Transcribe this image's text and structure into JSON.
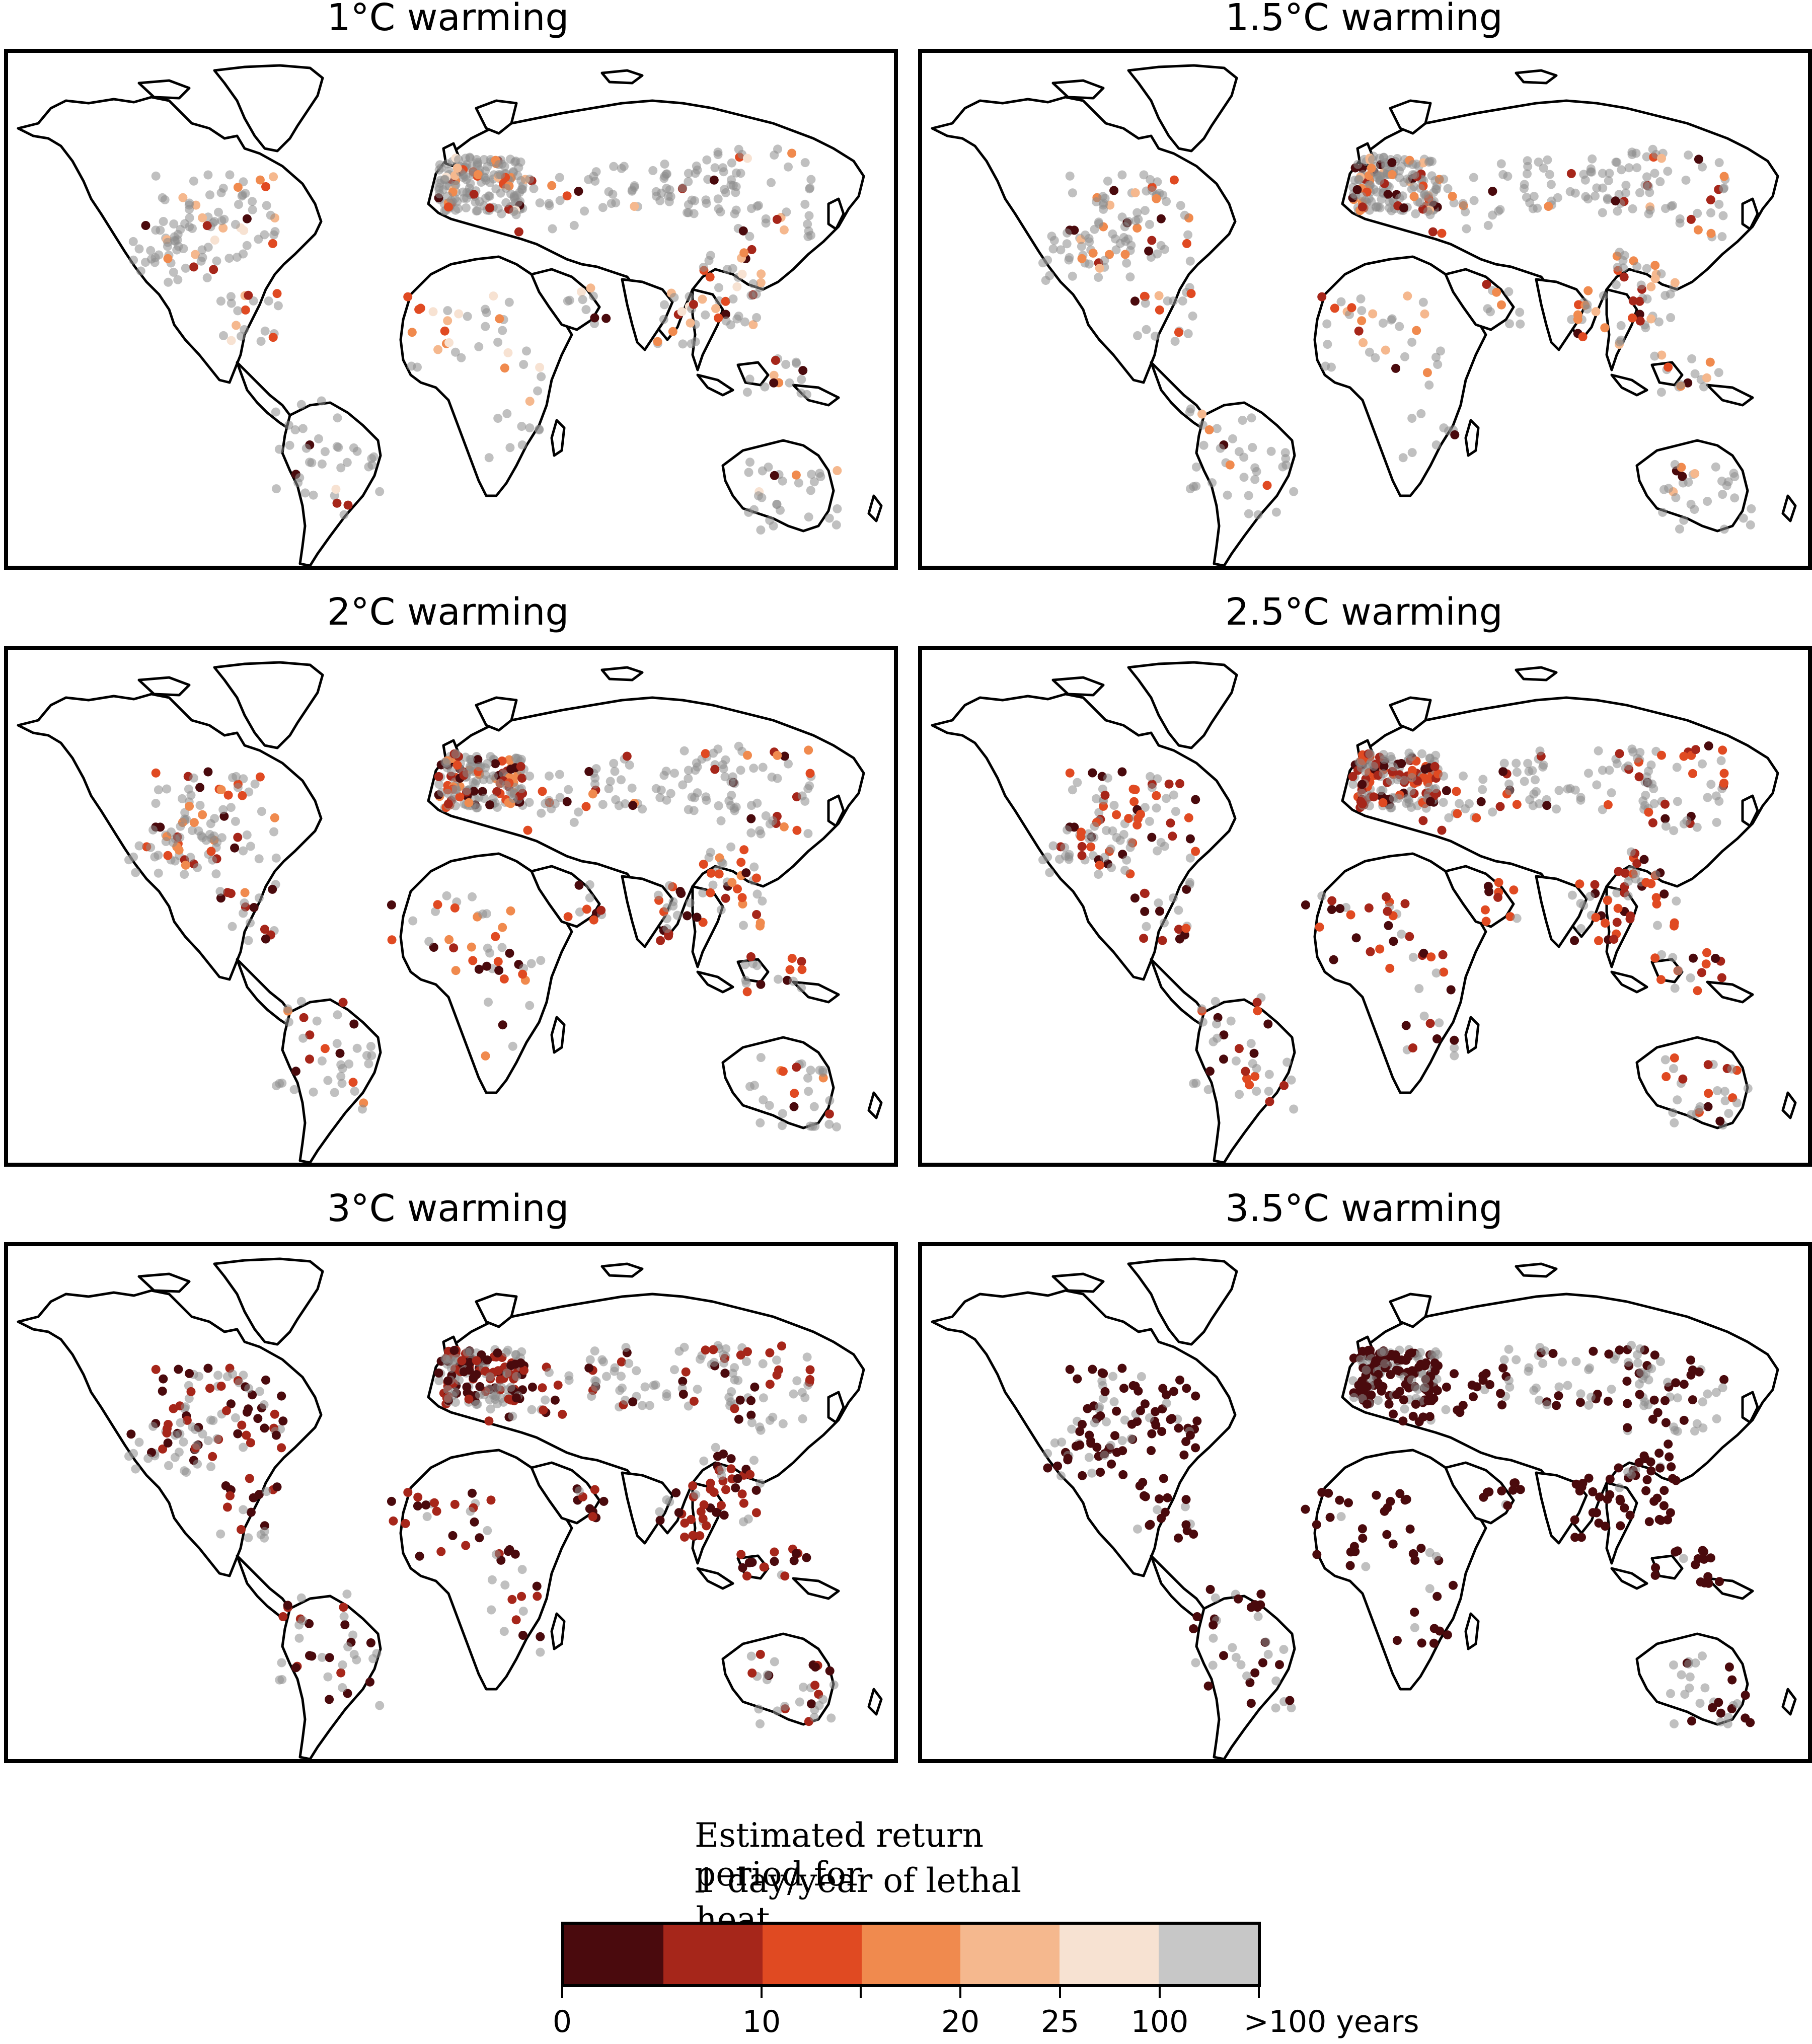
{
  "panels": [
    {
      "title": "1°C warming",
      "level": 1
    },
    {
      "title": "1.5°C warming",
      "level": 2
    },
    {
      "title": "2°C warming",
      "level": 3
    },
    {
      "title": "2.5°C warming",
      "level": 4
    },
    {
      "title": "3°C warming",
      "level": 5
    },
    {
      "title": "3.5°C warming",
      "level": 6
    }
  ],
  "legend": {
    "title_line1": "Estimated return period for",
    "title_line2": "1 day/year of lethal heat",
    "tick_labels": [
      "0",
      "10",
      "20",
      "25",
      "100",
      ">100 years"
    ],
    "colors": [
      "#4a0a0d",
      "#a6261a",
      "#e04a22",
      "#f08a4e",
      "#f5b88e",
      "#f7e2d2",
      "#c7c7c7"
    ],
    "bins": [
      "0-5",
      "5-10",
      "10-15",
      "15-20",
      "20-25",
      "25-100",
      ">100"
    ]
  },
  "colors": {
    "frame": "#000000",
    "land": "#ffffff",
    "gray_points": "#8c8c8c"
  }
}
